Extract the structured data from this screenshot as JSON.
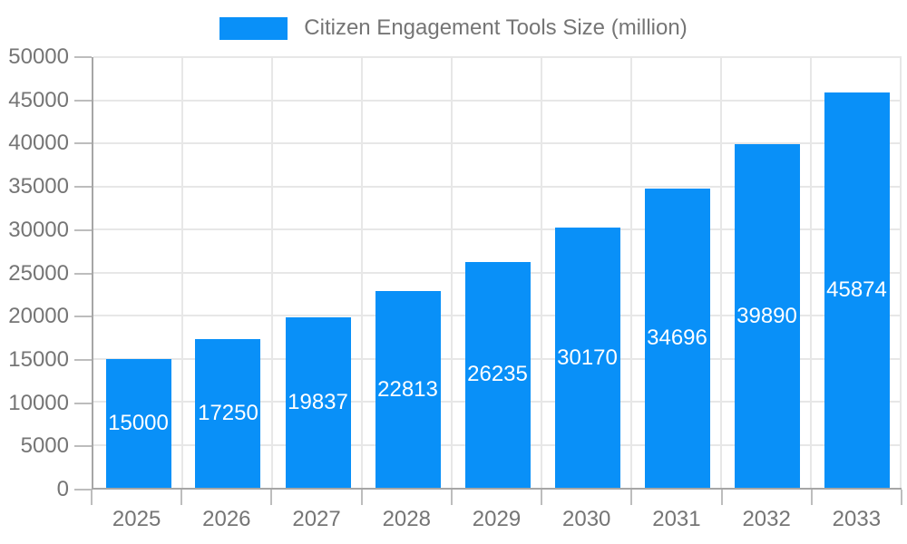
{
  "legend": {
    "items": [
      {
        "label": "Citizen Engagement Tools Size (million)",
        "color": "#0990f8"
      }
    ]
  },
  "chart_data": {
    "type": "bar",
    "title": "Citizen Engagement Tools Size (million)",
    "categories": [
      "2025",
      "2026",
      "2027",
      "2028",
      "2029",
      "2030",
      "2031",
      "2032",
      "2033"
    ],
    "series": [
      {
        "name": "Citizen Engagement Tools Size (million)",
        "color": "#0990f8",
        "values": [
          15000,
          17250,
          19837,
          22813,
          26235,
          30170,
          34696,
          39890,
          45874
        ]
      }
    ],
    "xlabel": "",
    "ylabel": "",
    "ylim": [
      0,
      50000
    ],
    "ytick_step": 5000,
    "ytick_labels": [
      "0",
      "5000",
      "10000",
      "15000",
      "20000",
      "25000",
      "30000",
      "35000",
      "40000",
      "45000",
      "50000"
    ],
    "grid": true,
    "legend_position": "top",
    "value_labels": {
      "position": "center-of-bar",
      "color": "#ffffff"
    },
    "colors": {
      "bar": "#0990f8",
      "axis_line": "#a6a6a6",
      "gridline": "#e7e7e7",
      "tick_mark": "#bdbdbd",
      "tick_label": "#757575",
      "legend_text": "#757575",
      "background": "#ffffff"
    }
  }
}
